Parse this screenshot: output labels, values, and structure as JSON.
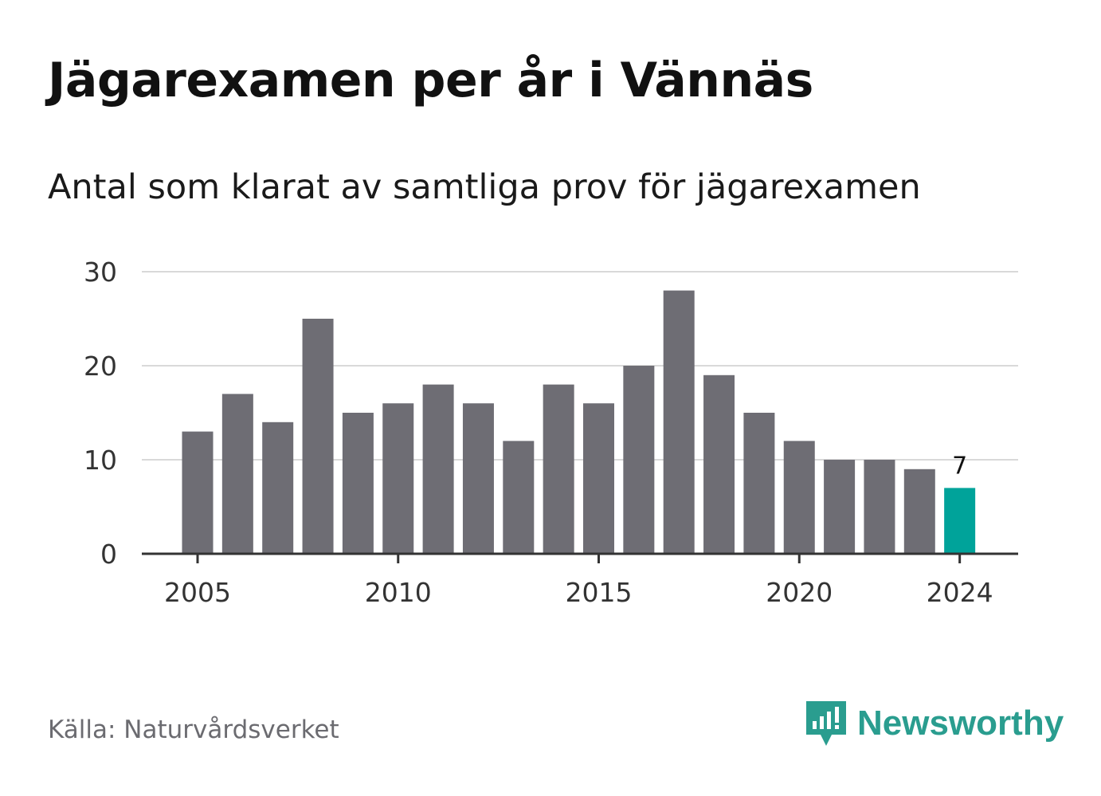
{
  "title": "Jägarexamen per år i Vännäs",
  "subtitle": "Antal som klarat av samtliga prov för jägarexamen",
  "source": "Källa: Naturvårdsverket",
  "brand": {
    "name": "Newsworthy",
    "icon": "newsworthy-logo-icon",
    "color": "#2a9d8f"
  },
  "colors": {
    "bar": "#6e6d74",
    "highlight": "#00a39a",
    "grid": "#d9d9d9",
    "axis": "#333333"
  },
  "chart_data": {
    "type": "bar",
    "categories": [
      "2005",
      "2006",
      "2007",
      "2008",
      "2009",
      "2010",
      "2011",
      "2012",
      "2013",
      "2014",
      "2015",
      "2016",
      "2017",
      "2018",
      "2019",
      "2020",
      "2021",
      "2022",
      "2023",
      "2024"
    ],
    "values": [
      13,
      17,
      14,
      25,
      15,
      16,
      18,
      16,
      12,
      18,
      16,
      20,
      28,
      19,
      15,
      12,
      10,
      10,
      9,
      7
    ],
    "x_tick_labels": [
      "2005",
      "2010",
      "2015",
      "2020",
      "2024"
    ],
    "y_ticks": [
      0,
      10,
      20,
      30
    ],
    "ylim": [
      0,
      30
    ],
    "highlight": {
      "category": "2024",
      "label": "7"
    },
    "grid": true,
    "xlabel": "",
    "ylabel": ""
  }
}
